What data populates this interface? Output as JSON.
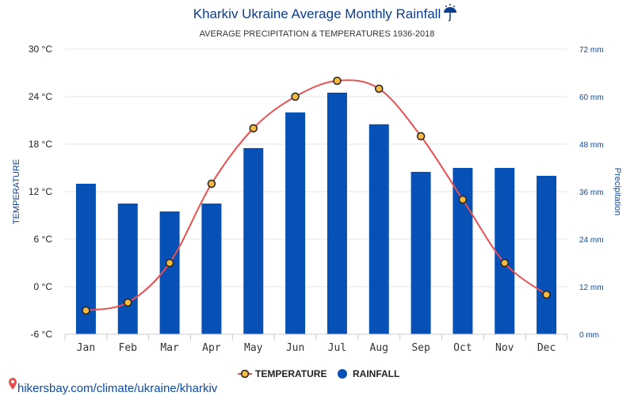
{
  "chart_data": {
    "type": "bar",
    "title": "Kharkiv Ukraine Average Monthly Rainfall",
    "title_icon": "umbrella-rain-icon",
    "subtitle": "AVERAGE PRECIPITATION & TEMPERATURES 1936-2018",
    "categories": [
      "Jan",
      "Feb",
      "Mar",
      "Apr",
      "May",
      "Jun",
      "Jul",
      "Aug",
      "Sep",
      "Oct",
      "Nov",
      "Dec"
    ],
    "series": [
      {
        "name": "TEMPERATURE",
        "kind": "line",
        "axis": "left",
        "unit": "°C",
        "color": "#e8504f",
        "marker_color": "#f5b942",
        "values": [
          -3,
          -2,
          3,
          13,
          20,
          24,
          26,
          25,
          19,
          11,
          3,
          -1
        ]
      },
      {
        "name": "RAINFALL",
        "kind": "bar",
        "axis": "right",
        "unit": "mm",
        "color": "#0750b6",
        "values": [
          38,
          33,
          31,
          33,
          47,
          56,
          61,
          53,
          41,
          42,
          42,
          40
        ]
      }
    ],
    "ylabel_left": "TEMPERATURE",
    "ylabel_right": "Precipitation",
    "ylim_left": [
      -6,
      30
    ],
    "yticks_left": [
      "30 °C",
      "24 °C",
      "18 °C",
      "12 °C",
      "6 °C",
      "0 °C",
      "-6 °C"
    ],
    "ylim_right": [
      0,
      72
    ],
    "yticks_right": [
      "72 mm",
      "60 mm",
      "48 mm",
      "36 mm",
      "24 mm",
      "12 mm",
      "0 mm"
    ],
    "grid": true,
    "legend_position": "bottom-center"
  },
  "footer": {
    "source_text": "hikersbay.com/climate/ukraine/kharkiv",
    "source_icon": "map-pin-icon"
  }
}
